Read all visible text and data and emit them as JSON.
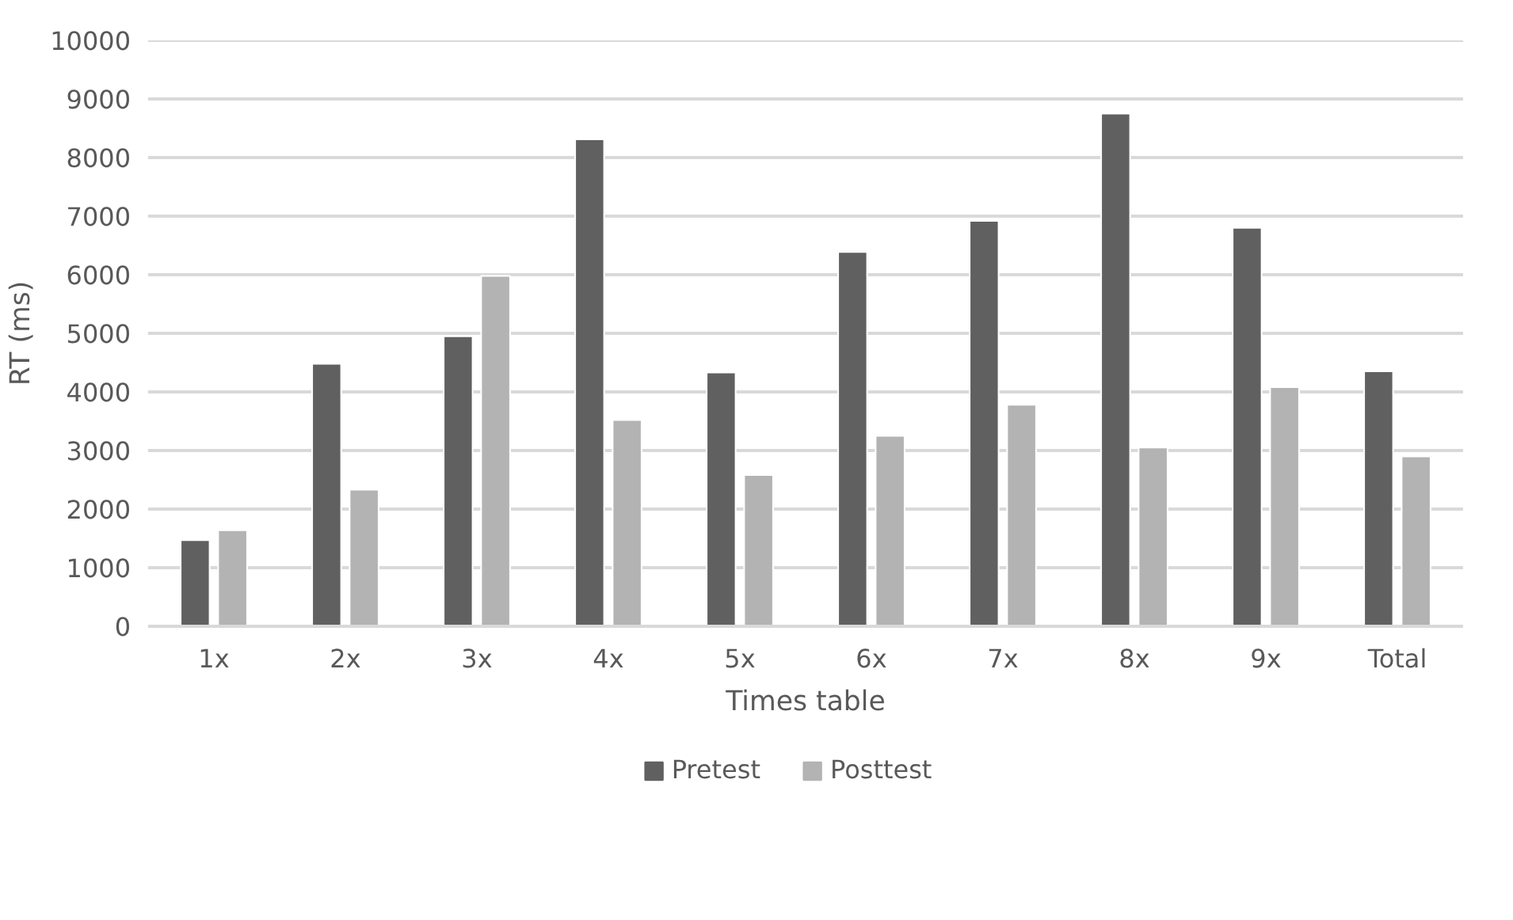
{
  "chart_data": {
    "type": "bar",
    "xlabel": "Times table",
    "ylabel": "RT (ms)",
    "categories": [
      "1x",
      "2x",
      "3x",
      "4x",
      "5x",
      "6x",
      "7x",
      "8x",
      "9x",
      "Total"
    ],
    "series": [
      {
        "name": "Pretest",
        "color": "#606060",
        "values": [
          1470,
          4480,
          4950,
          8310,
          4330,
          6390,
          6920,
          8750,
          6800,
          4350
        ]
      },
      {
        "name": "Posttest",
        "color": "#b3b3b3",
        "values": [
          1640,
          2330,
          5980,
          3520,
          2580,
          3250,
          3780,
          3050,
          4080,
          2900
        ]
      }
    ],
    "ylim": [
      0,
      10000
    ],
    "yticks": [
      0,
      1000,
      2000,
      3000,
      4000,
      5000,
      6000,
      7000,
      8000,
      9000,
      10000
    ],
    "grid": "y",
    "legend": "bottom"
  }
}
